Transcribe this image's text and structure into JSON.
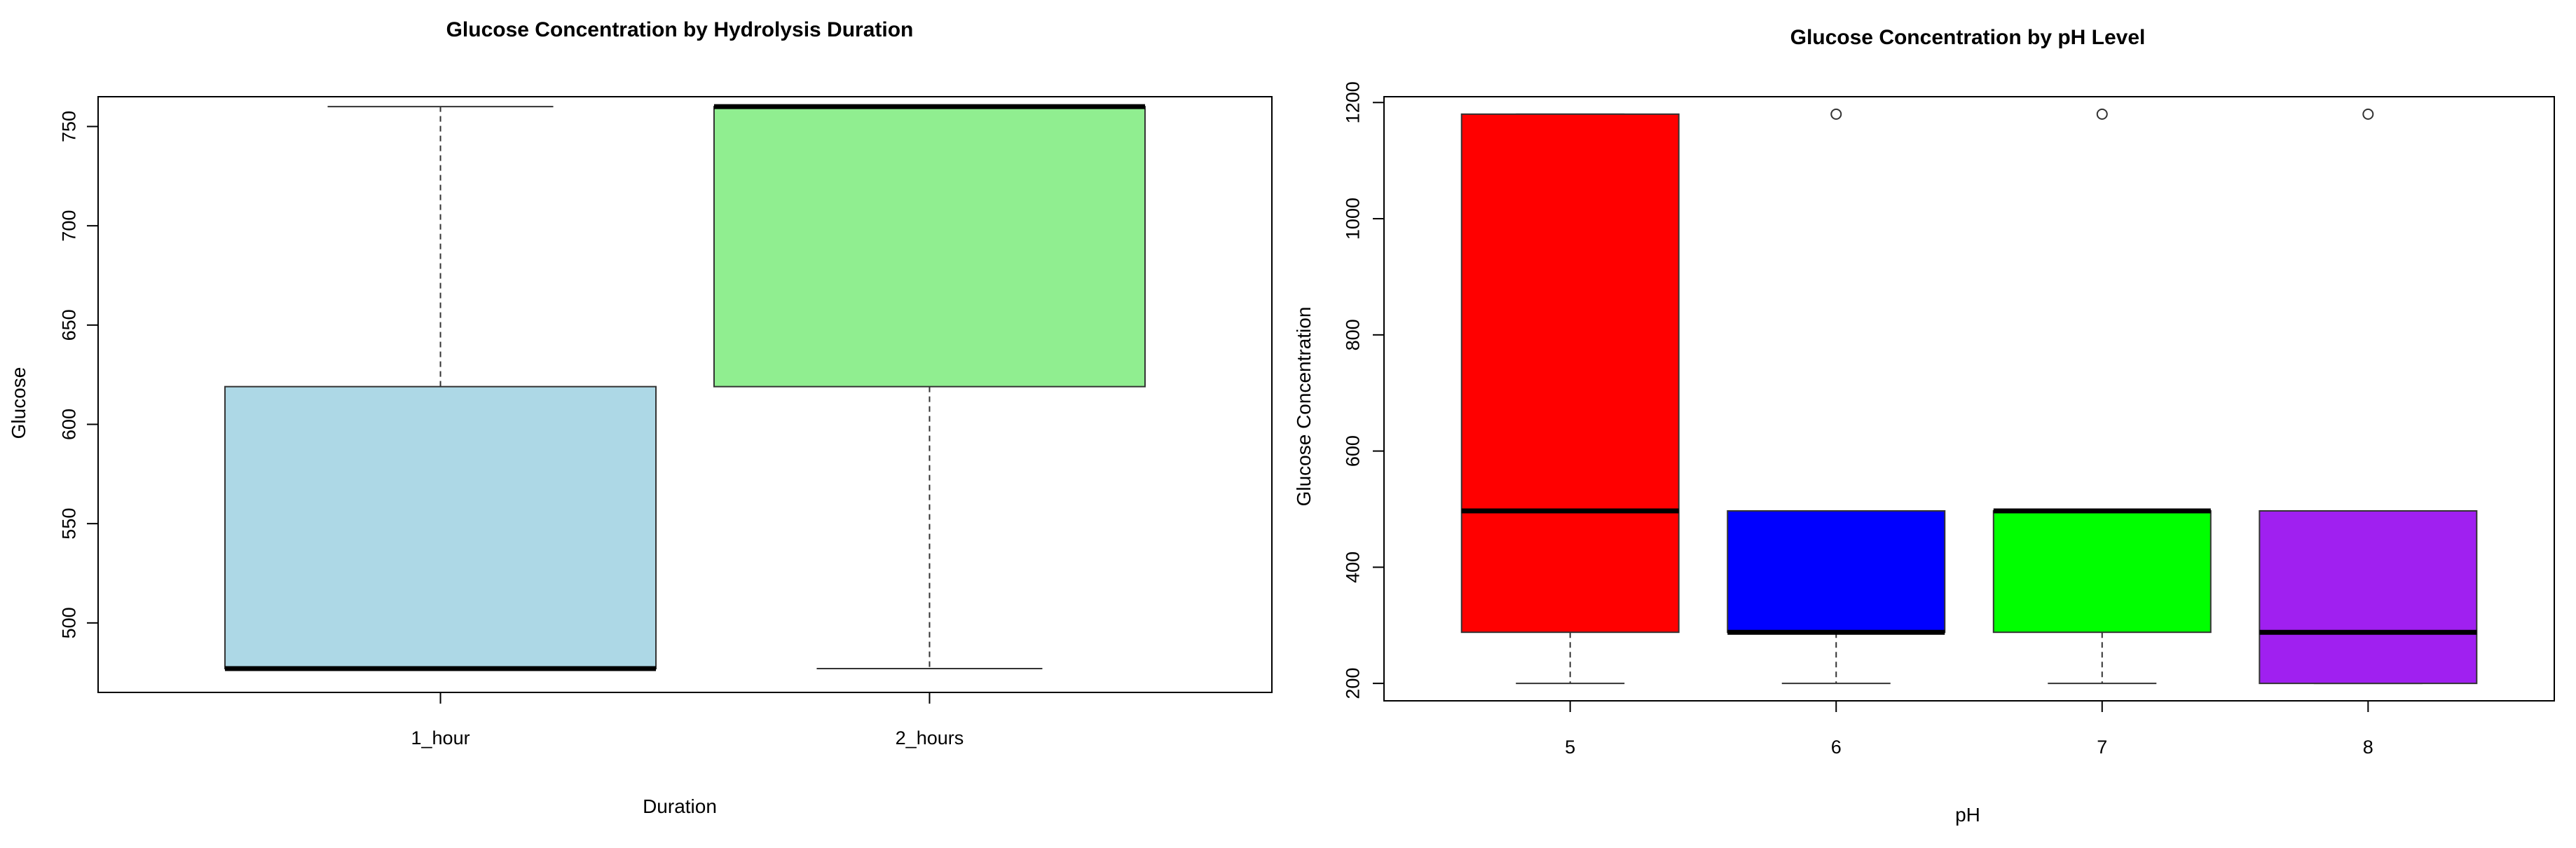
{
  "chart_data": [
    {
      "type": "boxplot",
      "title": "Glucose Concentration by Hydrolysis Duration",
      "xlabel": "Duration",
      "ylabel": "Glucose",
      "ylim": [
        465,
        765
      ],
      "yticks": [
        500,
        550,
        600,
        650,
        700,
        750
      ],
      "categories": [
        "1_hour",
        "2_hours"
      ],
      "boxes": [
        {
          "category": "1_hour",
          "min": 477,
          "q1": 477,
          "median": 477,
          "q3": 619,
          "max": 760,
          "outliers": [],
          "color": "#ADD8E6"
        },
        {
          "category": "2_hours",
          "min": 477,
          "q1": 619,
          "median": 760,
          "q3": 760,
          "max": 760,
          "outliers": [],
          "color": "#90EE90"
        }
      ]
    },
    {
      "type": "boxplot",
      "title": "Glucose Concentration by pH Level",
      "xlabel": "pH",
      "ylabel": "Glucose Concentration",
      "ylim": [
        170,
        1210
      ],
      "yticks": [
        200,
        400,
        600,
        800,
        1000,
        1200
      ],
      "categories": [
        "5",
        "6",
        "7",
        "8"
      ],
      "boxes": [
        {
          "category": "5",
          "min": 200,
          "q1": 288,
          "median": 497,
          "q3": 1180,
          "max": 1180,
          "outliers": [],
          "color": "#FF0000"
        },
        {
          "category": "6",
          "min": 200,
          "q1": 288,
          "median": 288,
          "q3": 497,
          "max": 497,
          "outliers": [
            1180
          ],
          "color": "#0000FF"
        },
        {
          "category": "7",
          "min": 200,
          "q1": 288,
          "median": 497,
          "q3": 497,
          "max": 497,
          "outliers": [
            1180
          ],
          "color": "#00FF00"
        },
        {
          "category": "8",
          "min": 200,
          "q1": 200,
          "median": 288,
          "q3": 497,
          "max": 497,
          "outliers": [
            1180
          ],
          "color": "#A020F0"
        }
      ]
    }
  ]
}
